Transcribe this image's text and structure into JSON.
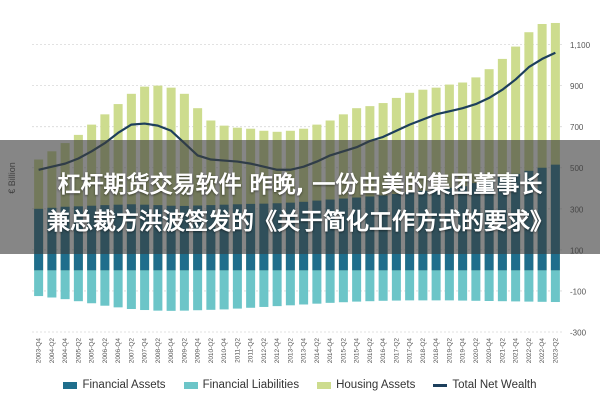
{
  "chart_data": {
    "type": "bar",
    "ylabel": "€ Billion",
    "ylim": [
      -300,
      1200
    ],
    "yticks": [
      1100,
      900,
      700,
      500,
      300,
      100,
      -100,
      -300
    ],
    "ytick_labels": [
      "1,100",
      "900",
      "700",
      "500",
      "300",
      "100",
      "-100",
      "-300"
    ],
    "categories": [
      "2003-Q4",
      "2004-Q2",
      "2004-Q4",
      "2005-Q2",
      "2005-Q4",
      "2006-Q2",
      "2006-Q4",
      "2007-Q2",
      "2007-Q4",
      "2008-Q2",
      "2008-Q4",
      "2009-Q2",
      "2009-Q4",
      "2010-Q2",
      "2010-Q4",
      "2011-Q2",
      "2011-Q4",
      "2012-Q2",
      "2012-Q4",
      "2013-Q2",
      "2013-Q4",
      "2014-Q2",
      "2014-Q4",
      "2015-Q2",
      "2015-Q4",
      "2016-Q2",
      "2016-Q4",
      "2017-Q2",
      "2017-Q4",
      "2018-Q2",
      "2018-Q4",
      "2019-Q2",
      "2019-Q4",
      "2020-Q2",
      "2020-Q4",
      "2021-Q2",
      "2021-Q4",
      "2022-Q2",
      "2022-Q4",
      "2023-Q2"
    ],
    "series": [
      {
        "name": "Financial Assets",
        "values": [
          300,
          305,
          310,
          312,
          315,
          318,
          320,
          322,
          320,
          318,
          315,
          314,
          316,
          318,
          320,
          322,
          324,
          325,
          327,
          330,
          334,
          340,
          345,
          350,
          355,
          360,
          365,
          372,
          380,
          388,
          395,
          402,
          410,
          425,
          440,
          455,
          470,
          485,
          500,
          515
        ]
      },
      {
        "name": "Financial Liabilities",
        "values": [
          -125,
          -132,
          -140,
          -150,
          -160,
          -172,
          -180,
          -188,
          -193,
          -196,
          -197,
          -196,
          -194,
          -192,
          -190,
          -186,
          -182,
          -178,
          -174,
          -170,
          -166,
          -162,
          -158,
          -155,
          -152,
          -150,
          -148,
          -147,
          -146,
          -146,
          -146,
          -146,
          -147,
          -148,
          -149,
          -150,
          -151,
          -152,
          -153,
          -154
        ]
      },
      {
        "name": "Housing Assets",
        "values": [
          540,
          580,
          620,
          660,
          710,
          760,
          810,
          860,
          895,
          900,
          890,
          860,
          790,
          730,
          705,
          695,
          690,
          680,
          675,
          680,
          690,
          710,
          730,
          760,
          790,
          800,
          815,
          840,
          865,
          880,
          890,
          905,
          915,
          940,
          980,
          1030,
          1090,
          1160,
          1200,
          1205
        ]
      },
      {
        "name": "Total Net Wealth",
        "values": [
          490,
          505,
          520,
          545,
          580,
          620,
          670,
          710,
          715,
          705,
          680,
          620,
          560,
          540,
          535,
          530,
          520,
          505,
          490,
          490,
          505,
          530,
          560,
          580,
          600,
          630,
          650,
          680,
          710,
          735,
          760,
          775,
          790,
          810,
          840,
          880,
          930,
          990,
          1030,
          1060
        ]
      }
    ],
    "colors": {
      "Financial Assets": "#1f6e8c",
      "Financial Liabilities": "#6cc5c8",
      "Housing Assets": "#cddc8e",
      "Total Net Wealth": "#1d3f5c"
    },
    "grid": true,
    "legend_position": "bottom"
  },
  "overlay": {
    "line1": "杠杆期货交易软件 昨晚, 一份由美的集团董事长",
    "line2": "兼总裁方洪波签发的《关于简化工作方式的要求》"
  },
  "legend": {
    "financial_assets": "Financial Assets",
    "financial_liabilities": "Financial Liabilities",
    "housing_assets": "Housing Assets",
    "total_net_wealth": "Total Net Wealth"
  }
}
